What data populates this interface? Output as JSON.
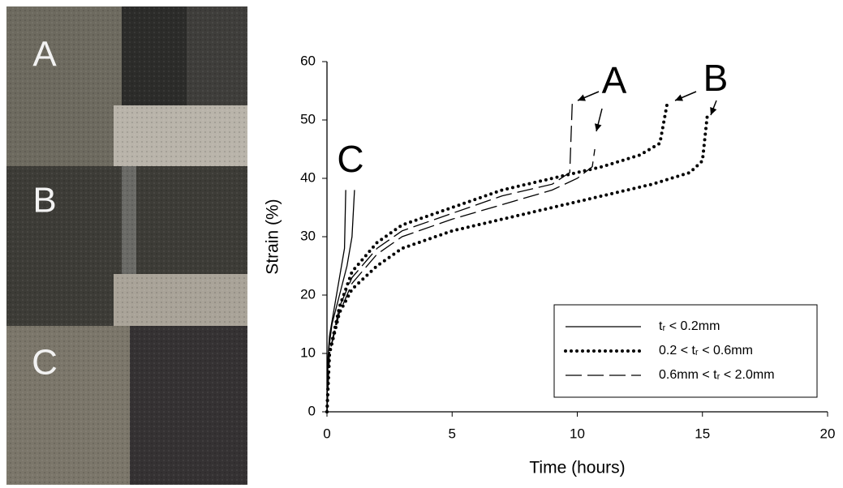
{
  "photos": {
    "labels": [
      "A",
      "B",
      "C"
    ]
  },
  "chart_data": {
    "type": "line",
    "x_label": "Time (hours)",
    "y_label": "Strain (%)",
    "xlim": [
      0,
      20
    ],
    "xticks": [
      0,
      5,
      10,
      15,
      20
    ],
    "ylim": [
      0,
      60
    ],
    "yticks": [
      0,
      10,
      20,
      30,
      40,
      50,
      60
    ],
    "grid": false,
    "legend": "lower right",
    "annotations": [
      "A",
      "B",
      "C"
    ],
    "series": [
      {
        "name": "tᵣ < 0.2mm",
        "color": "#000000",
        "dash": "solid",
        "lines": [
          {
            "x": [
              0,
              0.02,
              0.1,
              0.3,
              0.5,
              0.7,
              0.75
            ],
            "values": [
              0,
              8,
              13,
              18,
              23,
              28,
              38
            ]
          },
          {
            "x": [
              0,
              0.05,
              0.2,
              0.5,
              0.8,
              1.0,
              1.1
            ],
            "values": [
              0,
              10,
              15,
              20,
              25,
              30,
              38
            ]
          }
        ]
      },
      {
        "name": "0.2 < tᵣ < 0.6mm",
        "color": "#000000",
        "dash": "dotted",
        "lines": [
          {
            "x": [
              0,
              0.1,
              0.5,
              1,
              2,
              3,
              5,
              7,
              9,
              11,
              12.5,
              13.3,
              13.6
            ],
            "values": [
              0,
              10,
              18,
              24,
              29,
              32,
              35,
              38,
              40,
              42,
              44,
              46,
              53
            ]
          },
          {
            "x": [
              0,
              0.1,
              0.5,
              1,
              2,
              3,
              5,
              7,
              9,
              11,
              13,
              14.5,
              15,
              15.2
            ],
            "values": [
              0,
              10,
              17,
              21,
              25,
              28,
              31,
              33,
              35,
              37,
              39,
              41,
              43,
              51
            ]
          }
        ]
      },
      {
        "name": "0.6mm < tᵣ < 2.0mm",
        "color": "#000000",
        "dash": "dashed",
        "lines": [
          {
            "x": [
              0,
              0.1,
              0.5,
              1,
              2,
              3,
              5,
              7,
              9,
              9.7,
              9.8
            ],
            "values": [
              0,
              10,
              18,
              23,
              28,
              31,
              34,
              37,
              39,
              41,
              53
            ]
          },
          {
            "x": [
              0,
              0.1,
              0.5,
              1,
              2,
              3,
              5,
              7,
              9,
              10,
              10.6,
              10.7
            ],
            "values": [
              0,
              10,
              17,
              22,
              27,
              30,
              33,
              35.5,
              38,
              40,
              42,
              45
            ]
          }
        ]
      }
    ]
  }
}
